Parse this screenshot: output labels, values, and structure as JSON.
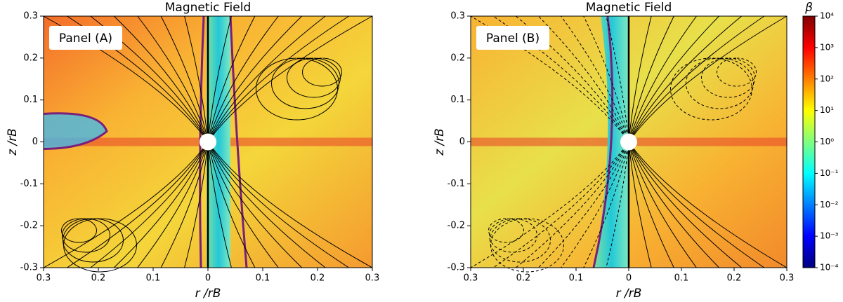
{
  "chart_data": [
    {
      "type": "heatmap",
      "title": "Magnetic Field",
      "annotation": "Panel (A)",
      "xlabel": "r /rB",
      "ylabel": "z /rB",
      "xlim": [
        -0.3,
        0.3
      ],
      "ylim": [
        -0.3,
        0.3
      ],
      "xticks": [
        {
          "value": -0.3,
          "label": "0.3"
        },
        {
          "value": -0.2,
          "label": "0.2"
        },
        {
          "value": -0.1,
          "label": "0.1"
        },
        0,
        0.1,
        0.2,
        0.3
      ],
      "yticks": [
        -0.3,
        -0.2,
        -0.1,
        0,
        0.1,
        0.2,
        0.3
      ]
    },
    {
      "type": "heatmap",
      "title": "Magnetic Field",
      "annotation": "Panel (B)",
      "xlabel": "r /rB",
      "ylabel": "z /rB",
      "xlim": [
        -0.3,
        0.3
      ],
      "ylim": [
        -0.3,
        0.3
      ],
      "xticks": [
        {
          "value": -0.3,
          "label": "0.3"
        },
        {
          "value": -0.2,
          "label": "0.2"
        },
        {
          "value": -0.1,
          "label": "0.1"
        },
        0,
        0.1,
        0.2,
        0.3
      ],
      "yticks": [
        -0.3,
        -0.2,
        -0.1,
        0,
        0.1,
        0.2,
        0.3
      ]
    }
  ],
  "colorbar": {
    "label": "β",
    "scale": "log",
    "lim": [
      0.0001,
      10000
    ],
    "ticks": [
      {
        "value": 0.0001,
        "label": "10⁻⁴"
      },
      {
        "value": 0.001,
        "label": "10⁻³"
      },
      {
        "value": 0.01,
        "label": "10⁻²"
      },
      {
        "value": 0.1,
        "label": "10⁻¹"
      },
      {
        "value": 1,
        "label": "10⁰"
      },
      {
        "value": 10,
        "label": "10¹"
      },
      {
        "value": 100,
        "label": "10²"
      },
      {
        "value": 1000,
        "label": "10³"
      },
      {
        "value": 10000,
        "label": "10⁴"
      }
    ]
  }
}
